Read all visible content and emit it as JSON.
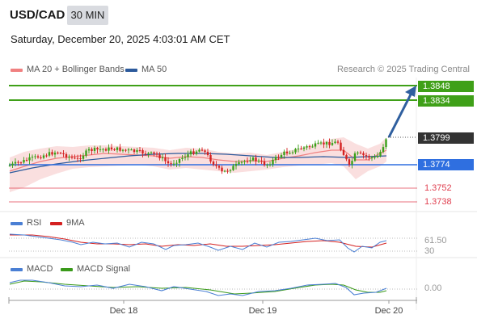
{
  "header": {
    "pair": "USD/CAD",
    "timeframe": "30 MIN",
    "datetime": "Saturday, December 20, 2025 4:03:01 AM CET",
    "credit": "Research © 2025 Trading Central"
  },
  "main_legend": [
    {
      "label": "MA 20 + Bollinger Bands",
      "color": "#f08080"
    },
    {
      "label": "MA 50",
      "color": "#2c5a9c"
    }
  ],
  "price_levels": {
    "resistance_2": "1.3848",
    "resistance_1": "1.3834",
    "current": "1.3799",
    "pivot": "1.3774",
    "support_1": "1.3752",
    "support_2": "1.3738"
  },
  "rsi_legend": [
    {
      "label": "RSI",
      "color": "#4a7fd4"
    },
    {
      "label": "9MA",
      "color": "#d42020"
    }
  ],
  "rsi_labels": {
    "value": "61.50",
    "lower": "30"
  },
  "macd_legend": [
    {
      "label": "MACD",
      "color": "#4a7fd4"
    },
    {
      "label": "MACD Signal",
      "color": "#3a9a1a"
    }
  ],
  "macd_labels": {
    "value": "0.00"
  },
  "x_axis": {
    "labels": [
      "Dec 18",
      "Dec 19",
      "Dec 20"
    ]
  },
  "colors": {
    "resistance": "#3fa018",
    "pivot": "#2f6fe0",
    "support": "#e04050",
    "current": "#333333",
    "candle_up": "#3aa018",
    "candle_down": "#d42020",
    "arrow": "#2f5f9f"
  },
  "chart_data": {
    "type": "candlestick",
    "series_shown": [
      "MA 20 + Bollinger Bands",
      "MA 50"
    ],
    "last_price": 1.3799,
    "levels": [
      1.3848,
      1.3834,
      1.3799,
      1.3774,
      1.3752,
      1.3738
    ],
    "x_ticks": [
      "Dec 18",
      "Dec 19",
      "Dec 20"
    ],
    "rsi_last": 61.5,
    "macd_last": 0.0
  }
}
